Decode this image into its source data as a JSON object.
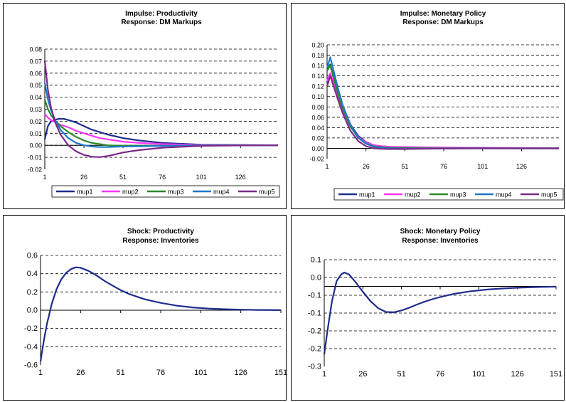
{
  "colors": {
    "mup1": "#1f2d8c",
    "mup2": "#ff33ff",
    "mup3": "#2a8a2a",
    "mup4": "#1e78c8",
    "mup5": "#7a2a8a",
    "inv": "#1f2d8c"
  },
  "chart_data": [
    {
      "id": "tl",
      "type": "line",
      "title": "Impulse: Productivity",
      "subtitle": "Response: DM Markups",
      "xlim": [
        1,
        150
      ],
      "xticks": [
        "1",
        "26",
        "51",
        "76",
        "101",
        "126"
      ],
      "ylim": [
        -0.02,
        0.08
      ],
      "yticks": [
        "0.08",
        "0.07",
        "0.06",
        "0.05",
        "0.04",
        "0.03",
        "0.02",
        "0.01",
        "0.00",
        "-0.01",
        "-0.02"
      ],
      "series": [
        {
          "name": "mup1",
          "color": "#1f2d8c",
          "x": [
            1,
            3,
            5,
            7,
            10,
            13,
            16,
            21,
            26,
            31,
            36,
            41,
            51,
            61,
            76,
            101,
            126,
            150
          ],
          "y": [
            0.005,
            0.016,
            0.02,
            0.021,
            0.022,
            0.022,
            0.021,
            0.019,
            0.016,
            0.013,
            0.011,
            0.009,
            0.006,
            0.004,
            0.002,
            0.0005,
            0.0002,
            0.0
          ]
        },
        {
          "name": "mup2",
          "color": "#ff33ff",
          "x": [
            1,
            3,
            5,
            8,
            11,
            16,
            21,
            26,
            31,
            36,
            41,
            51,
            61,
            76,
            101,
            126,
            150
          ],
          "y": [
            0.026,
            0.023,
            0.021,
            0.019,
            0.017,
            0.015,
            0.012,
            0.01,
            0.008,
            0.006,
            0.005,
            0.003,
            0.002,
            0.001,
            0.0003,
            0.0001,
            0.0
          ]
        },
        {
          "name": "mup3",
          "color": "#2a8a2a",
          "x": [
            1,
            3,
            5,
            8,
            11,
            16,
            21,
            26,
            31,
            36,
            41,
            51,
            61,
            76,
            101,
            126,
            150
          ],
          "y": [
            0.038,
            0.03,
            0.025,
            0.02,
            0.016,
            0.011,
            0.007,
            0.004,
            0.002,
            0.001,
            0.0,
            -0.0005,
            -0.0005,
            -0.0003,
            -0.0001,
            0.0,
            0.0
          ]
        },
        {
          "name": "mup4",
          "color": "#1e78c8",
          "x": [
            1,
            3,
            5,
            8,
            11,
            16,
            21,
            26,
            31,
            36,
            41,
            51,
            61,
            76,
            101,
            126,
            150
          ],
          "y": [
            0.052,
            0.038,
            0.029,
            0.02,
            0.013,
            0.006,
            0.002,
            0.0,
            -0.001,
            -0.0015,
            -0.0015,
            -0.001,
            -0.0008,
            -0.0005,
            -0.0002,
            0.0,
            0.0
          ]
        },
        {
          "name": "mup5",
          "color": "#7a2a8a",
          "x": [
            1,
            3,
            5,
            8,
            11,
            16,
            21,
            26,
            31,
            36,
            41,
            46,
            51,
            61,
            76,
            101,
            126,
            150
          ],
          "y": [
            0.07,
            0.046,
            0.031,
            0.018,
            0.009,
            0.0,
            -0.005,
            -0.008,
            -0.0095,
            -0.0098,
            -0.009,
            -0.0075,
            -0.006,
            -0.004,
            -0.002,
            -0.0005,
            -0.0001,
            0.0
          ]
        }
      ],
      "legend": "bottom"
    },
    {
      "id": "tr",
      "type": "line",
      "title": "Impulse: Monetary Policy",
      "subtitle": "Response: DM Markups",
      "xlim": [
        1,
        150
      ],
      "xticks": [
        "1",
        "26",
        "51",
        "76",
        "101",
        "126"
      ],
      "ylim": [
        -0.02,
        0.2
      ],
      "yticks": [
        "0.20",
        "0.18",
        "0.16",
        "0.14",
        "0.12",
        "0.10",
        "0.08",
        "0.06",
        "0.04",
        "0.02",
        "0.00",
        "-0.02"
      ],
      "series": [
        {
          "name": "mup1",
          "color": "#1f2d8c",
          "x": [
            1,
            3,
            5,
            8,
            11,
            16,
            21,
            26,
            31,
            36,
            41,
            51,
            61,
            76,
            101,
            126,
            150
          ],
          "y": [
            0.15,
            0.162,
            0.14,
            0.11,
            0.082,
            0.046,
            0.024,
            0.012,
            0.006,
            0.004,
            0.003,
            0.002,
            0.0015,
            0.001,
            0.0005,
            0.0002,
            0.0
          ]
        },
        {
          "name": "mup2",
          "color": "#ff33ff",
          "x": [
            1,
            3,
            5,
            8,
            11,
            16,
            21,
            26,
            31,
            36,
            41,
            51,
            61,
            76,
            101,
            126,
            150
          ],
          "y": [
            0.13,
            0.145,
            0.128,
            0.1,
            0.075,
            0.042,
            0.022,
            0.011,
            0.006,
            0.004,
            0.003,
            0.0025,
            0.002,
            0.0015,
            0.001,
            0.0005,
            0.0
          ]
        },
        {
          "name": "mup3",
          "color": "#2a8a2a",
          "x": [
            1,
            3,
            5,
            8,
            11,
            16,
            21,
            26,
            31,
            36,
            41,
            51,
            61,
            76,
            101,
            126,
            150
          ],
          "y": [
            0.15,
            0.16,
            0.138,
            0.106,
            0.078,
            0.042,
            0.02,
            0.009,
            0.004,
            0.002,
            0.001,
            0.0005,
            0.0003,
            0.0002,
            0.0001,
            0.0,
            0.0
          ]
        },
        {
          "name": "mup4",
          "color": "#1e78c8",
          "x": [
            1,
            3,
            5,
            8,
            11,
            16,
            21,
            26,
            31,
            36,
            41,
            51,
            61,
            76,
            101,
            126,
            150
          ],
          "y": [
            0.155,
            0.176,
            0.152,
            0.116,
            0.084,
            0.045,
            0.021,
            0.009,
            0.003,
            0.001,
            0.0,
            -0.0005,
            -0.0005,
            -0.0003,
            0.0,
            0.0,
            0.0
          ]
        },
        {
          "name": "mup5",
          "color": "#7a2a8a",
          "x": [
            1,
            3,
            5,
            8,
            11,
            16,
            21,
            26,
            31,
            36,
            41,
            51,
            61,
            76,
            101,
            126,
            150
          ],
          "y": [
            0.12,
            0.14,
            0.122,
            0.094,
            0.068,
            0.034,
            0.014,
            0.004,
            0.0,
            -0.001,
            -0.0015,
            -0.0015,
            -0.001,
            -0.0005,
            0.0,
            0.0,
            0.0
          ]
        }
      ],
      "legend": "bottom"
    },
    {
      "id": "bl",
      "type": "line",
      "title": "Shock: Productivity",
      "subtitle": "Response: Inventories",
      "xlim": [
        1,
        151
      ],
      "xticks": [
        "1",
        "26",
        "51",
        "76",
        "101",
        "126",
        "151"
      ],
      "ylim": [
        -0.6,
        0.6
      ],
      "yticks": [
        "0.6",
        "0.4",
        "0.2",
        "0.0",
        "-0.2",
        "-0.4",
        "-0.6"
      ],
      "series": [
        {
          "name": "",
          "color": "#1f2d8c",
          "x": [
            1,
            3,
            5,
            8,
            11,
            14,
            17,
            20,
            23,
            26,
            31,
            36,
            41,
            46,
            51,
            56,
            61,
            66,
            71,
            76,
            86,
            96,
            106,
            116,
            126,
            136,
            151
          ],
          "y": [
            -0.56,
            -0.34,
            -0.15,
            0.07,
            0.23,
            0.34,
            0.41,
            0.45,
            0.47,
            0.465,
            0.43,
            0.38,
            0.32,
            0.27,
            0.22,
            0.18,
            0.15,
            0.12,
            0.1,
            0.08,
            0.05,
            0.03,
            0.018,
            0.011,
            0.006,
            0.003,
            0.001
          ]
        }
      ]
    },
    {
      "id": "br",
      "type": "line",
      "title": "Shock: Monetary Policy",
      "subtitle": "Response: Inventories",
      "xlim": [
        1,
        151
      ],
      "xticks": [
        "1",
        "26",
        "51",
        "76",
        "101",
        "126",
        "151"
      ],
      "ylim": [
        -0.3,
        0.1
      ],
      "yticks": [
        "0.1",
        "0.0",
        "-0.1",
        "-0.1",
        "-0.2",
        "-0.2",
        "-0.3"
      ],
      "series": [
        {
          "name": "",
          "color": "#1f2d8c",
          "x": [
            1,
            3,
            6,
            9,
            12,
            14,
            17,
            21,
            26,
            31,
            36,
            41,
            46,
            51,
            56,
            61,
            66,
            71,
            76,
            81,
            86,
            96,
            106,
            116,
            126,
            136,
            151
          ],
          "y": [
            -0.255,
            -0.17,
            -0.055,
            0.02,
            0.045,
            0.052,
            0.045,
            0.018,
            -0.02,
            -0.056,
            -0.082,
            -0.096,
            -0.097,
            -0.09,
            -0.08,
            -0.068,
            -0.057,
            -0.048,
            -0.04,
            -0.033,
            -0.027,
            -0.018,
            -0.012,
            -0.008,
            -0.005,
            -0.003,
            -0.001
          ]
        }
      ]
    }
  ]
}
